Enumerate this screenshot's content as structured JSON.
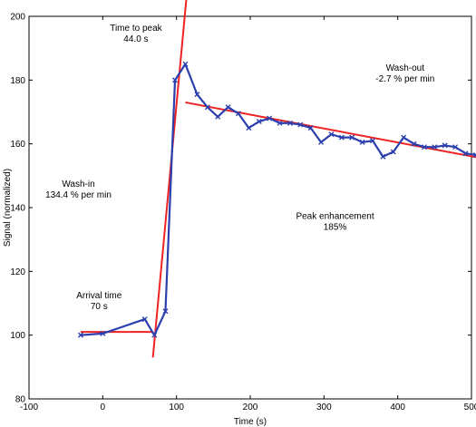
{
  "chart_data": {
    "type": "line",
    "title": "",
    "xlabel": "Time (s)",
    "ylabel": "Signal (normalized)",
    "xlim": [
      -100,
      500
    ],
    "ylim": [
      80,
      200
    ],
    "xticks": [
      "-100",
      "0",
      "100",
      "200",
      "300",
      "400",
      "500"
    ],
    "yticks": [
      "80",
      "100",
      "120",
      "140",
      "160",
      "180",
      "200"
    ],
    "grid": false,
    "series": [
      {
        "name": "",
        "color": "#2b3fae",
        "marker": "x",
        "x": [
          -30,
          0,
          57,
          70,
          85,
          98,
          112,
          128,
          142,
          156,
          170,
          184,
          198,
          212,
          226,
          240,
          254,
          268,
          282,
          296,
          310,
          324,
          338,
          352,
          366,
          380,
          394,
          408,
          422,
          436,
          450,
          464,
          478,
          492,
          506,
          520
        ],
        "y": [
          100,
          100.5,
          105,
          100,
          107.5,
          180,
          185,
          175.5,
          171.5,
          168.5,
          171.5,
          169.5,
          165,
          167,
          168,
          166.5,
          166.5,
          166,
          165,
          160.5,
          163,
          162,
          162,
          160.5,
          161,
          156,
          157.5,
          162,
          160,
          159,
          159,
          159.5,
          159,
          157,
          156.5,
          156
        ]
      }
    ],
    "fit_lines": [
      {
        "name": "",
        "color": "#ee2222",
        "x": [
          -30,
          68
        ],
        "y": [
          101,
          101
        ]
      },
      {
        "name": "",
        "color": "#ee2222",
        "x": [
          68,
          118
        ],
        "y": [
          93,
          217
        ]
      },
      {
        "name": "",
        "color": "#ee2222",
        "x": [
          112,
          525
        ],
        "y": [
          173,
          155
        ]
      }
    ],
    "annotations": [
      {
        "lines": [
          "Time to peak",
          "44.0 s"
        ],
        "x": 45,
        "y": 195.5
      },
      {
        "lines": [
          "Wash-out",
          "-2.7 % per min"
        ],
        "x": 410,
        "y": 183
      },
      {
        "lines": [
          "Wash-in",
          "134.4 % per min"
        ],
        "x": -33,
        "y": 146.5
      },
      {
        "lines": [
          "Peak enhancement",
          "185%"
        ],
        "x": 315,
        "y": 136.5
      },
      {
        "lines": [
          "Arrival time",
          "70 s"
        ],
        "x": -5,
        "y": 111.5
      }
    ]
  }
}
